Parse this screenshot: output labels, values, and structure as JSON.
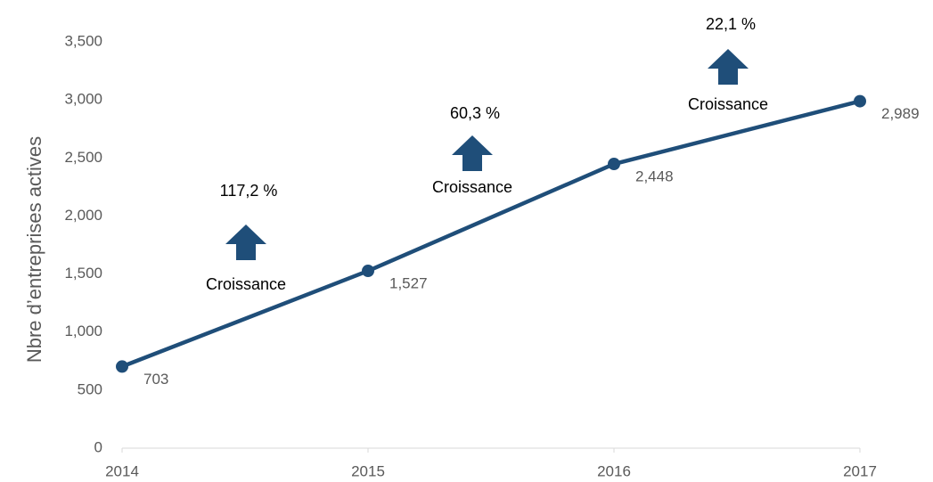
{
  "chart_data": {
    "type": "line",
    "y_label": "Nbre d’entreprises actives",
    "x": [
      2014,
      2015,
      2016,
      2017
    ],
    "xlim": [
      2014,
      2017
    ],
    "xticks": [
      2014,
      2015,
      2016,
      2017
    ],
    "ylim": [
      0,
      3500
    ],
    "yticks": [
      0,
      500,
      {
        "value": 1000,
        "label": "1,000"
      },
      {
        "value": 1500,
        "label": "1,500"
      },
      {
        "value": 2000,
        "label": "2,000"
      },
      {
        "value": 2500,
        "label": "2,500"
      },
      {
        "value": 3000,
        "label": "3,000"
      },
      {
        "value": 3500,
        "label": "3,500"
      }
    ],
    "grid": false,
    "series": [
      {
        "name": "Nbre d’entreprises actives",
        "color": "#1f4e79",
        "values": [
          703,
          1527,
          2448,
          2989
        ],
        "value_labels": [
          "703",
          "1,527",
          "2,448",
          "2,989"
        ]
      }
    ],
    "annotations": [
      {
        "percent": "117,2 %",
        "label": "Croissance"
      },
      {
        "percent": "60,3 %",
        "label": "Croissance"
      },
      {
        "percent": "22,1 %",
        "label": "Croissance"
      }
    ]
  }
}
